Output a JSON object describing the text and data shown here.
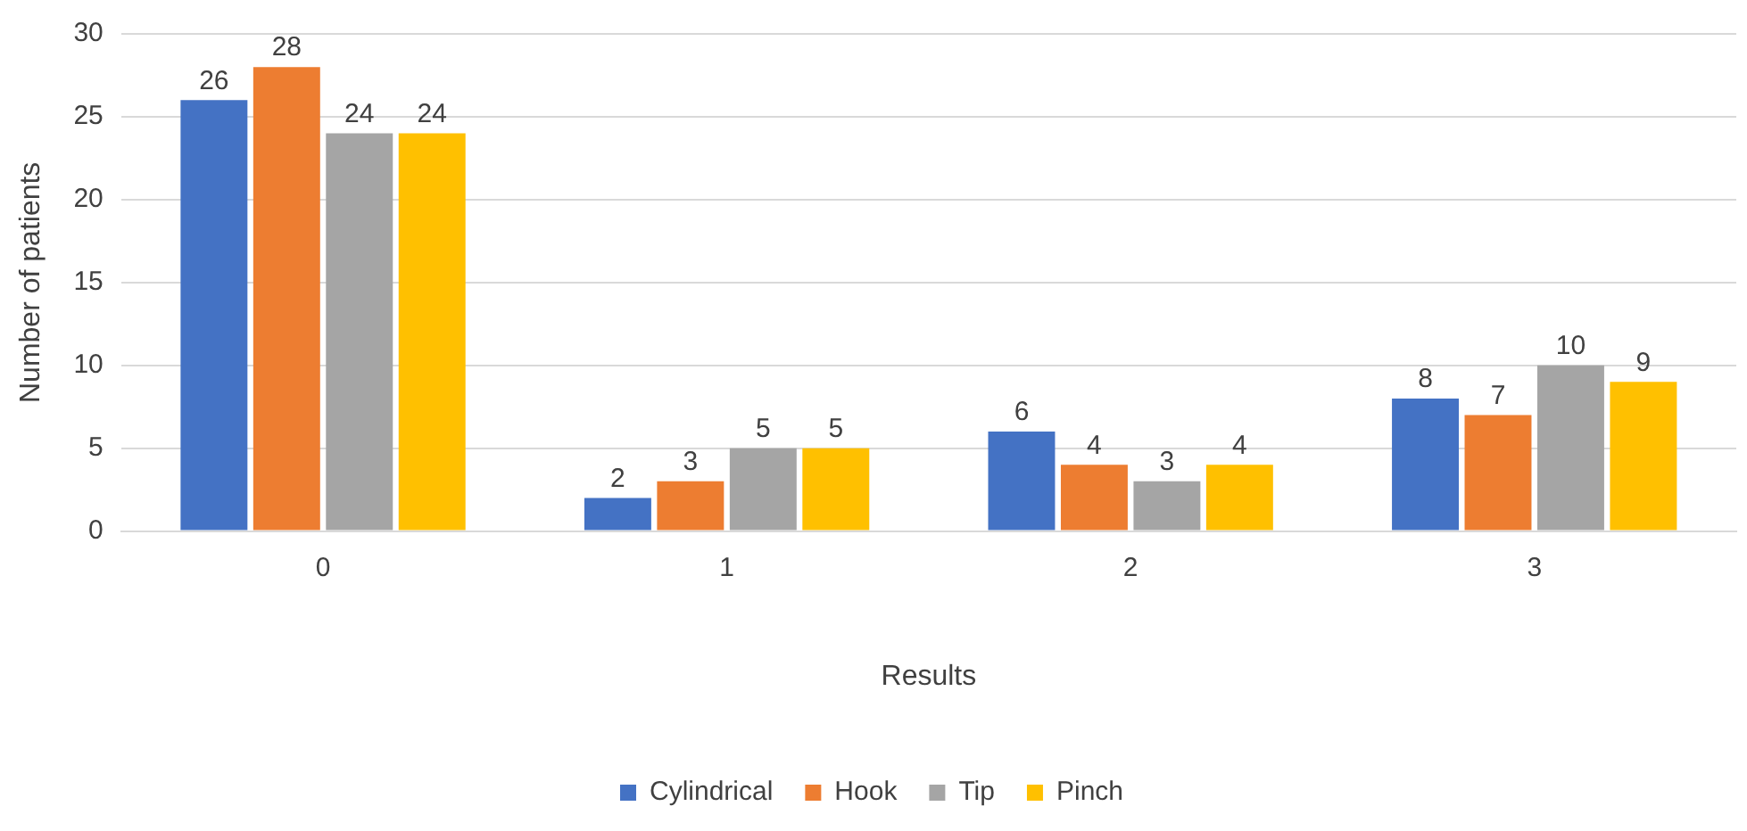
{
  "chart_data": {
    "type": "bar",
    "xlabel": "Results",
    "ylabel": "Number of patients",
    "categories": [
      "0",
      "1",
      "2",
      "3"
    ],
    "series": [
      {
        "name": "Cylindrical",
        "color": "#4472c4",
        "values": [
          26,
          2,
          6,
          8
        ]
      },
      {
        "name": "Hook",
        "color": "#ed7d31",
        "values": [
          28,
          3,
          4,
          7
        ]
      },
      {
        "name": "Tip",
        "color": "#a5a5a5",
        "values": [
          24,
          5,
          3,
          10
        ]
      },
      {
        "name": "Pinch",
        "color": "#ffc000",
        "values": [
          24,
          5,
          4,
          9
        ]
      }
    ],
    "ylim": [
      0,
      30
    ],
    "yticks": [
      0,
      5,
      10,
      15,
      20,
      25,
      30
    ],
    "grid": "y",
    "legend": "bottom",
    "data_labels": true
  }
}
